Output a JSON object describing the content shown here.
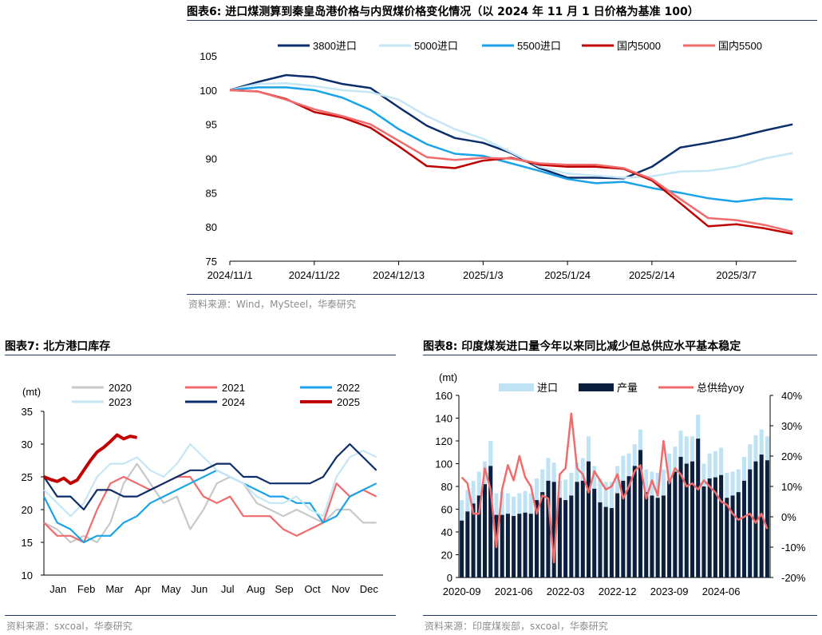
{
  "fig6": {
    "title": "图表6:  进口煤测算到秦皇岛港价格与内贸煤价格变化情况（以 2024 年 11 月 1 日价格为基准 100）",
    "source": "资料来源：Wind，MySteel，华泰研究"
  },
  "fig7": {
    "title": "图表7:  北方港口库存",
    "source": "资料来源：sxcoal，华泰研究"
  },
  "fig8": {
    "title": "图表8:  印度煤炭进口量今年以来同比减少但总供应水平基本稳定",
    "source": "资料来源：印度煤炭部，sxcoal，华泰研究"
  },
  "chart_data": [
    {
      "id": "fig6",
      "type": "line",
      "ylim": [
        75,
        105
      ],
      "yticks": [
        75,
        80,
        85,
        90,
        95,
        100,
        105
      ],
      "xlim": [
        0,
        135
      ],
      "xticks": [
        {
          "x": 0,
          "label": "2024/11/1"
        },
        {
          "x": 21,
          "label": "2024/11/22"
        },
        {
          "x": 42,
          "label": "2024/12/13"
        },
        {
          "x": 63,
          "label": "2025/1/3"
        },
        {
          "x": 84,
          "label": "2025/1/24"
        },
        {
          "x": 105,
          "label": "2025/2/14"
        },
        {
          "x": 126,
          "label": "2025/3/7"
        }
      ],
      "x": [
        0,
        7,
        14,
        21,
        28,
        35,
        42,
        49,
        56,
        63,
        70,
        77,
        84,
        91,
        98,
        105,
        112,
        119,
        126,
        133,
        140
      ],
      "series": [
        {
          "name": "3800进口",
          "color": "#0b2e6b",
          "values": [
            100,
            101.2,
            102.2,
            101.9,
            100.9,
            100.3,
            97.5,
            94.8,
            93,
            92.3,
            90.8,
            88.6,
            87.2,
            87.2,
            87.1,
            88.8,
            91.6,
            92.3,
            93.1,
            94.1,
            95
          ]
        },
        {
          "name": "5000进口",
          "color": "#c5e6f5",
          "values": [
            100,
            100.9,
            101,
            100.6,
            100,
            99.7,
            98.6,
            96.2,
            94.3,
            92.9,
            90.9,
            88.8,
            87.8,
            87.5,
            87.2,
            87.4,
            88.1,
            88.2,
            88.8,
            90,
            90.8
          ]
        },
        {
          "name": "5500进口",
          "color": "#1aa3e8",
          "values": [
            100,
            100.4,
            100.4,
            100,
            98.9,
            97.1,
            94.3,
            92.1,
            90.7,
            90.4,
            89.3,
            88.2,
            87,
            86.4,
            86.6,
            85.7,
            85,
            84.2,
            83.7,
            84.2,
            84
          ]
        },
        {
          "name": "国内5000",
          "color": "#c00000",
          "values": [
            100,
            99.8,
            98.7,
            96.8,
            96,
            94.5,
            91.8,
            88.9,
            88.6,
            89.7,
            90.1,
            89.1,
            88.8,
            88.8,
            88.5,
            86.8,
            83.5,
            80.1,
            80.4,
            79.8,
            79
          ]
        },
        {
          "name": "国内5500",
          "color": "#f06b6b",
          "values": [
            100,
            99.8,
            98.6,
            97.2,
            96.2,
            95,
            92.6,
            90.2,
            89.8,
            90.1,
            90,
            89.3,
            89.1,
            89.1,
            88.6,
            87,
            84.1,
            81.3,
            81,
            80.3,
            79.3
          ]
        }
      ]
    },
    {
      "id": "fig7",
      "type": "line",
      "ylabel": "(mt)",
      "ylim": [
        10,
        35
      ],
      "yticks": [
        10,
        15,
        20,
        25,
        30,
        35
      ],
      "xlabels": [
        "Jan",
        "Feb",
        "Mar",
        "Apr",
        "May",
        "Jun",
        "Jul",
        "Aug",
        "Sep",
        "Oct",
        "Nov",
        "Dec"
      ],
      "x_week_max": 51,
      "series": [
        {
          "name": "2020",
          "color": "#c8c8c8",
          "weeks": [
            0,
            2,
            4,
            6,
            8,
            10,
            12,
            14,
            16,
            18,
            20,
            22,
            24,
            26,
            28,
            30,
            32,
            34,
            36,
            38,
            40,
            42,
            44,
            46,
            48,
            50
          ],
          "values": [
            18,
            17,
            15,
            16,
            15,
            18,
            24,
            27,
            24,
            21,
            22,
            17,
            20,
            24,
            25,
            24,
            21,
            20,
            19,
            20,
            19,
            18,
            20,
            20,
            18,
            18
          ]
        },
        {
          "name": "2021",
          "color": "#f06b6b",
          "weeks": [
            0,
            2,
            4,
            6,
            8,
            10,
            12,
            14,
            16,
            18,
            20,
            22,
            24,
            26,
            28,
            30,
            32,
            34,
            36,
            38,
            40,
            42,
            44,
            46,
            48,
            50
          ],
          "values": [
            18,
            16,
            16,
            15,
            20,
            24,
            25,
            24,
            23,
            24,
            25,
            25,
            22,
            21,
            22,
            19,
            19,
            19,
            17,
            16,
            17,
            18,
            24,
            22,
            23,
            22
          ]
        },
        {
          "name": "2022",
          "color": "#1aa3e8",
          "weeks": [
            0,
            2,
            4,
            6,
            8,
            10,
            12,
            14,
            16,
            18,
            20,
            22,
            24,
            26,
            28,
            30,
            32,
            34,
            36,
            38,
            40,
            42,
            44,
            46,
            48,
            50
          ],
          "values": [
            22,
            18,
            17,
            15,
            16,
            16,
            18,
            19,
            21,
            22,
            23,
            24,
            25,
            26,
            25,
            24,
            23,
            22,
            22,
            21,
            21,
            18,
            19,
            22,
            23,
            24
          ]
        },
        {
          "name": "2023",
          "color": "#c5e6f5",
          "weeks": [
            0,
            2,
            4,
            6,
            8,
            10,
            12,
            14,
            16,
            18,
            20,
            22,
            24,
            26,
            28,
            30,
            32,
            34,
            36,
            38,
            40,
            42,
            44,
            46,
            48,
            50
          ],
          "values": [
            23,
            21,
            19,
            21,
            25,
            27,
            27,
            28,
            26,
            25,
            27,
            30,
            28,
            26,
            25,
            24,
            22,
            21,
            21,
            22,
            20,
            19,
            25,
            28,
            29,
            28
          ]
        },
        {
          "name": "2024",
          "color": "#0b2e6b",
          "weeks": [
            0,
            2,
            4,
            6,
            8,
            10,
            12,
            14,
            16,
            18,
            20,
            22,
            24,
            26,
            28,
            30,
            32,
            34,
            36,
            38,
            40,
            42,
            44,
            46,
            48,
            50
          ],
          "values": [
            25,
            22,
            22,
            20,
            23,
            23,
            22,
            22,
            23,
            24,
            25,
            26,
            26,
            27,
            27,
            25,
            25,
            24,
            24,
            24,
            24,
            25,
            28,
            30,
            28,
            26
          ]
        },
        {
          "name": "2025",
          "color": "#c00000",
          "weeks": [
            0,
            1,
            2,
            3,
            4,
            5,
            6,
            7,
            8,
            9,
            10,
            11,
            12,
            13,
            14
          ],
          "values": [
            25,
            24.6,
            24.3,
            24.8,
            24,
            24.5,
            26,
            27.5,
            28.8,
            29.5,
            30.4,
            31.4,
            30.8,
            31.2,
            31
          ]
        }
      ]
    },
    {
      "id": "fig8",
      "type": "bar",
      "ylabel": "(mt)",
      "ylim": [
        0,
        160
      ],
      "yticks": [
        0,
        20,
        40,
        60,
        80,
        100,
        120,
        140,
        160
      ],
      "y2lim": [
        -20,
        40
      ],
      "y2ticks": [
        "-20%",
        "-10%",
        "0%",
        "10%",
        "20%",
        "30%",
        "40%"
      ],
      "xticklabels": [
        "2020-09",
        "2021-06",
        "2022-03",
        "2022-12",
        "2023-09",
        "2024-06"
      ],
      "xtick_months": [
        0,
        9,
        18,
        27,
        36,
        45
      ],
      "months": 54,
      "series": [
        {
          "name": "进口",
          "color": "#bfe3f4",
          "values": [
            18,
            19,
            20,
            21,
            20,
            22,
            19,
            20,
            18,
            17,
            18,
            19,
            18,
            19,
            20,
            20,
            17,
            15,
            18,
            20,
            17,
            20,
            22,
            20,
            21,
            22,
            23,
            24,
            22,
            20,
            19,
            18,
            20,
            21,
            22,
            23,
            24,
            22,
            23,
            24,
            22,
            21,
            20,
            22,
            23,
            24,
            22,
            21,
            20,
            21,
            22,
            23,
            22,
            21
          ]
        },
        {
          "name": "产量",
          "color": "#0b1f3f",
          "values": [
            50,
            58,
            65,
            72,
            82,
            98,
            55,
            55,
            56,
            54,
            56,
            57,
            56,
            68,
            75,
            85,
            84,
            70,
            68,
            72,
            84,
            85,
            102,
            78,
            66,
            62,
            61,
            74,
            85,
            89,
            98,
            112,
            75,
            72,
            70,
            72,
            85,
            93,
            106,
            100,
            102,
            122,
            80,
            87,
            88,
            90,
            70,
            72,
            75,
            85,
            95,
            102,
            108,
            103
          ]
        },
        {
          "name": "总供给yoy",
          "color": "#f06b6b",
          "axis": "right",
          "values": [
            13,
            11,
            1,
            1,
            16,
            9,
            -10,
            9,
            17,
            12,
            20,
            13,
            10,
            1,
            7,
            6,
            -15,
            14,
            16,
            34,
            16,
            14,
            8,
            15,
            12,
            9,
            10,
            14,
            6,
            10,
            15,
            17,
            6,
            12,
            7,
            25,
            11,
            16,
            14,
            10,
            11,
            9,
            12,
            10,
            8,
            5,
            4,
            1,
            -1,
            0,
            1,
            -2,
            1,
            -4
          ]
        }
      ]
    }
  ]
}
